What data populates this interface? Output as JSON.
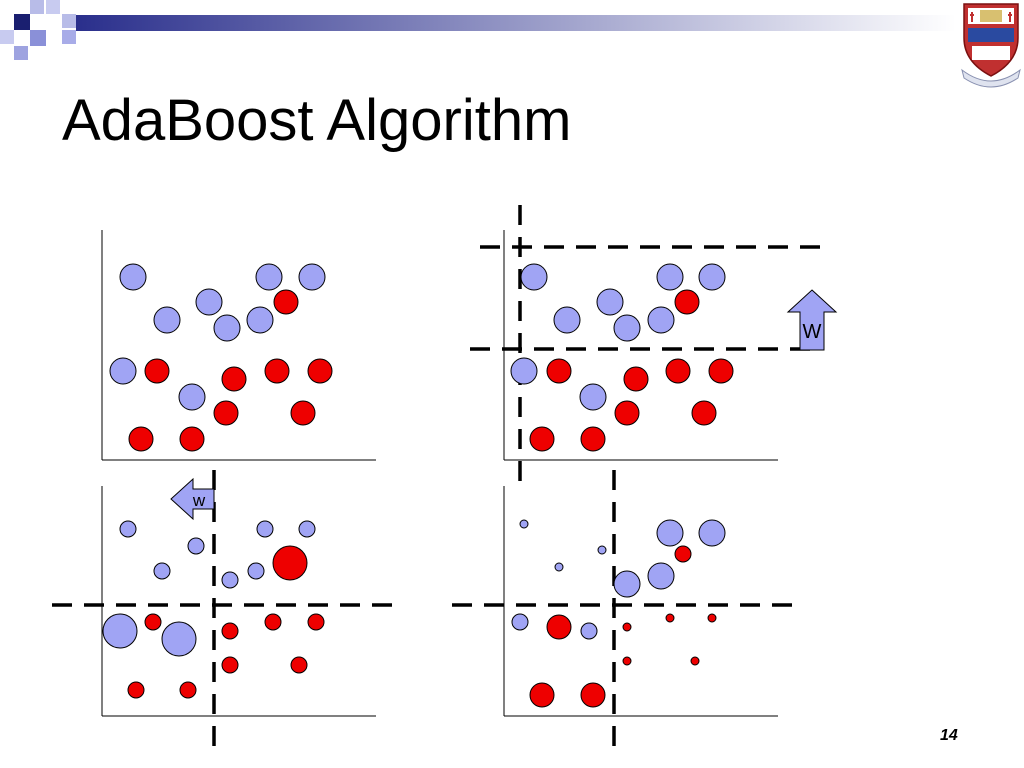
{
  "slide": {
    "title": "AdaBoost Algorithm",
    "page_number": "14"
  },
  "colors": {
    "negative_point": "#a0a4f4",
    "positive_point": "#ee0000",
    "point_outline": "#000000",
    "arrow_fill": "#a0a4f4",
    "accent": "#2a2f8c"
  },
  "icons": {
    "logo": "university-crest-icon",
    "header_decoration": "checker-squares-decoration"
  },
  "arrows": {
    "up_label": "W",
    "left_label": "w"
  }
}
